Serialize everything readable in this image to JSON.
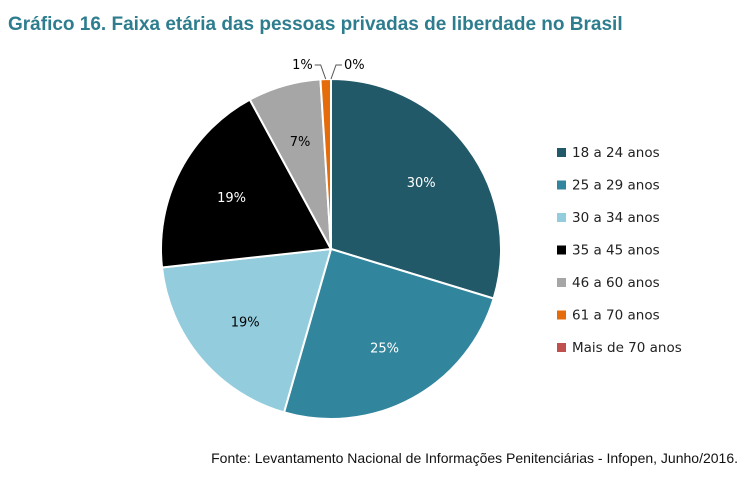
{
  "figure": {
    "title": "Gráfico 16. Faixa etária das pessoas privadas de liberdade no Brasil",
    "source": "Fonte: Levantamento Nacional de Informações Penitenciárias - Infopen, Junho/2016."
  },
  "chart_data": {
    "type": "pie",
    "title": "Gráfico 16. Faixa etária das pessoas privadas de liberdade no Brasil",
    "legend_position": "right",
    "slices": [
      {
        "label": "18 a 24 anos",
        "value": 30,
        "display": "30%",
        "color": "#215968",
        "label_color": "#ffffff"
      },
      {
        "label": "25 a 29 anos",
        "value": 25,
        "display": "25%",
        "color": "#31859c",
        "label_color": "#ffffff"
      },
      {
        "label": "30 a 34 anos",
        "value": 19,
        "display": "19%",
        "color": "#93cddd",
        "label_color": "#000000"
      },
      {
        "label": "35 a 45 anos",
        "value": 19,
        "display": "19%",
        "color": "#000000",
        "label_color": "#ffffff"
      },
      {
        "label": "46 a 60 anos",
        "value": 7,
        "display": "7%",
        "color": "#a6a6a6",
        "label_color": "#000000"
      },
      {
        "label": "61 a 70 anos",
        "value": 1,
        "display": "1%",
        "color": "#e46c0a",
        "label_color": "#000000"
      },
      {
        "label": "Mais de 70 anos",
        "value": 0,
        "display": "0%",
        "color": "#c0504d",
        "label_color": "#000000"
      }
    ]
  }
}
